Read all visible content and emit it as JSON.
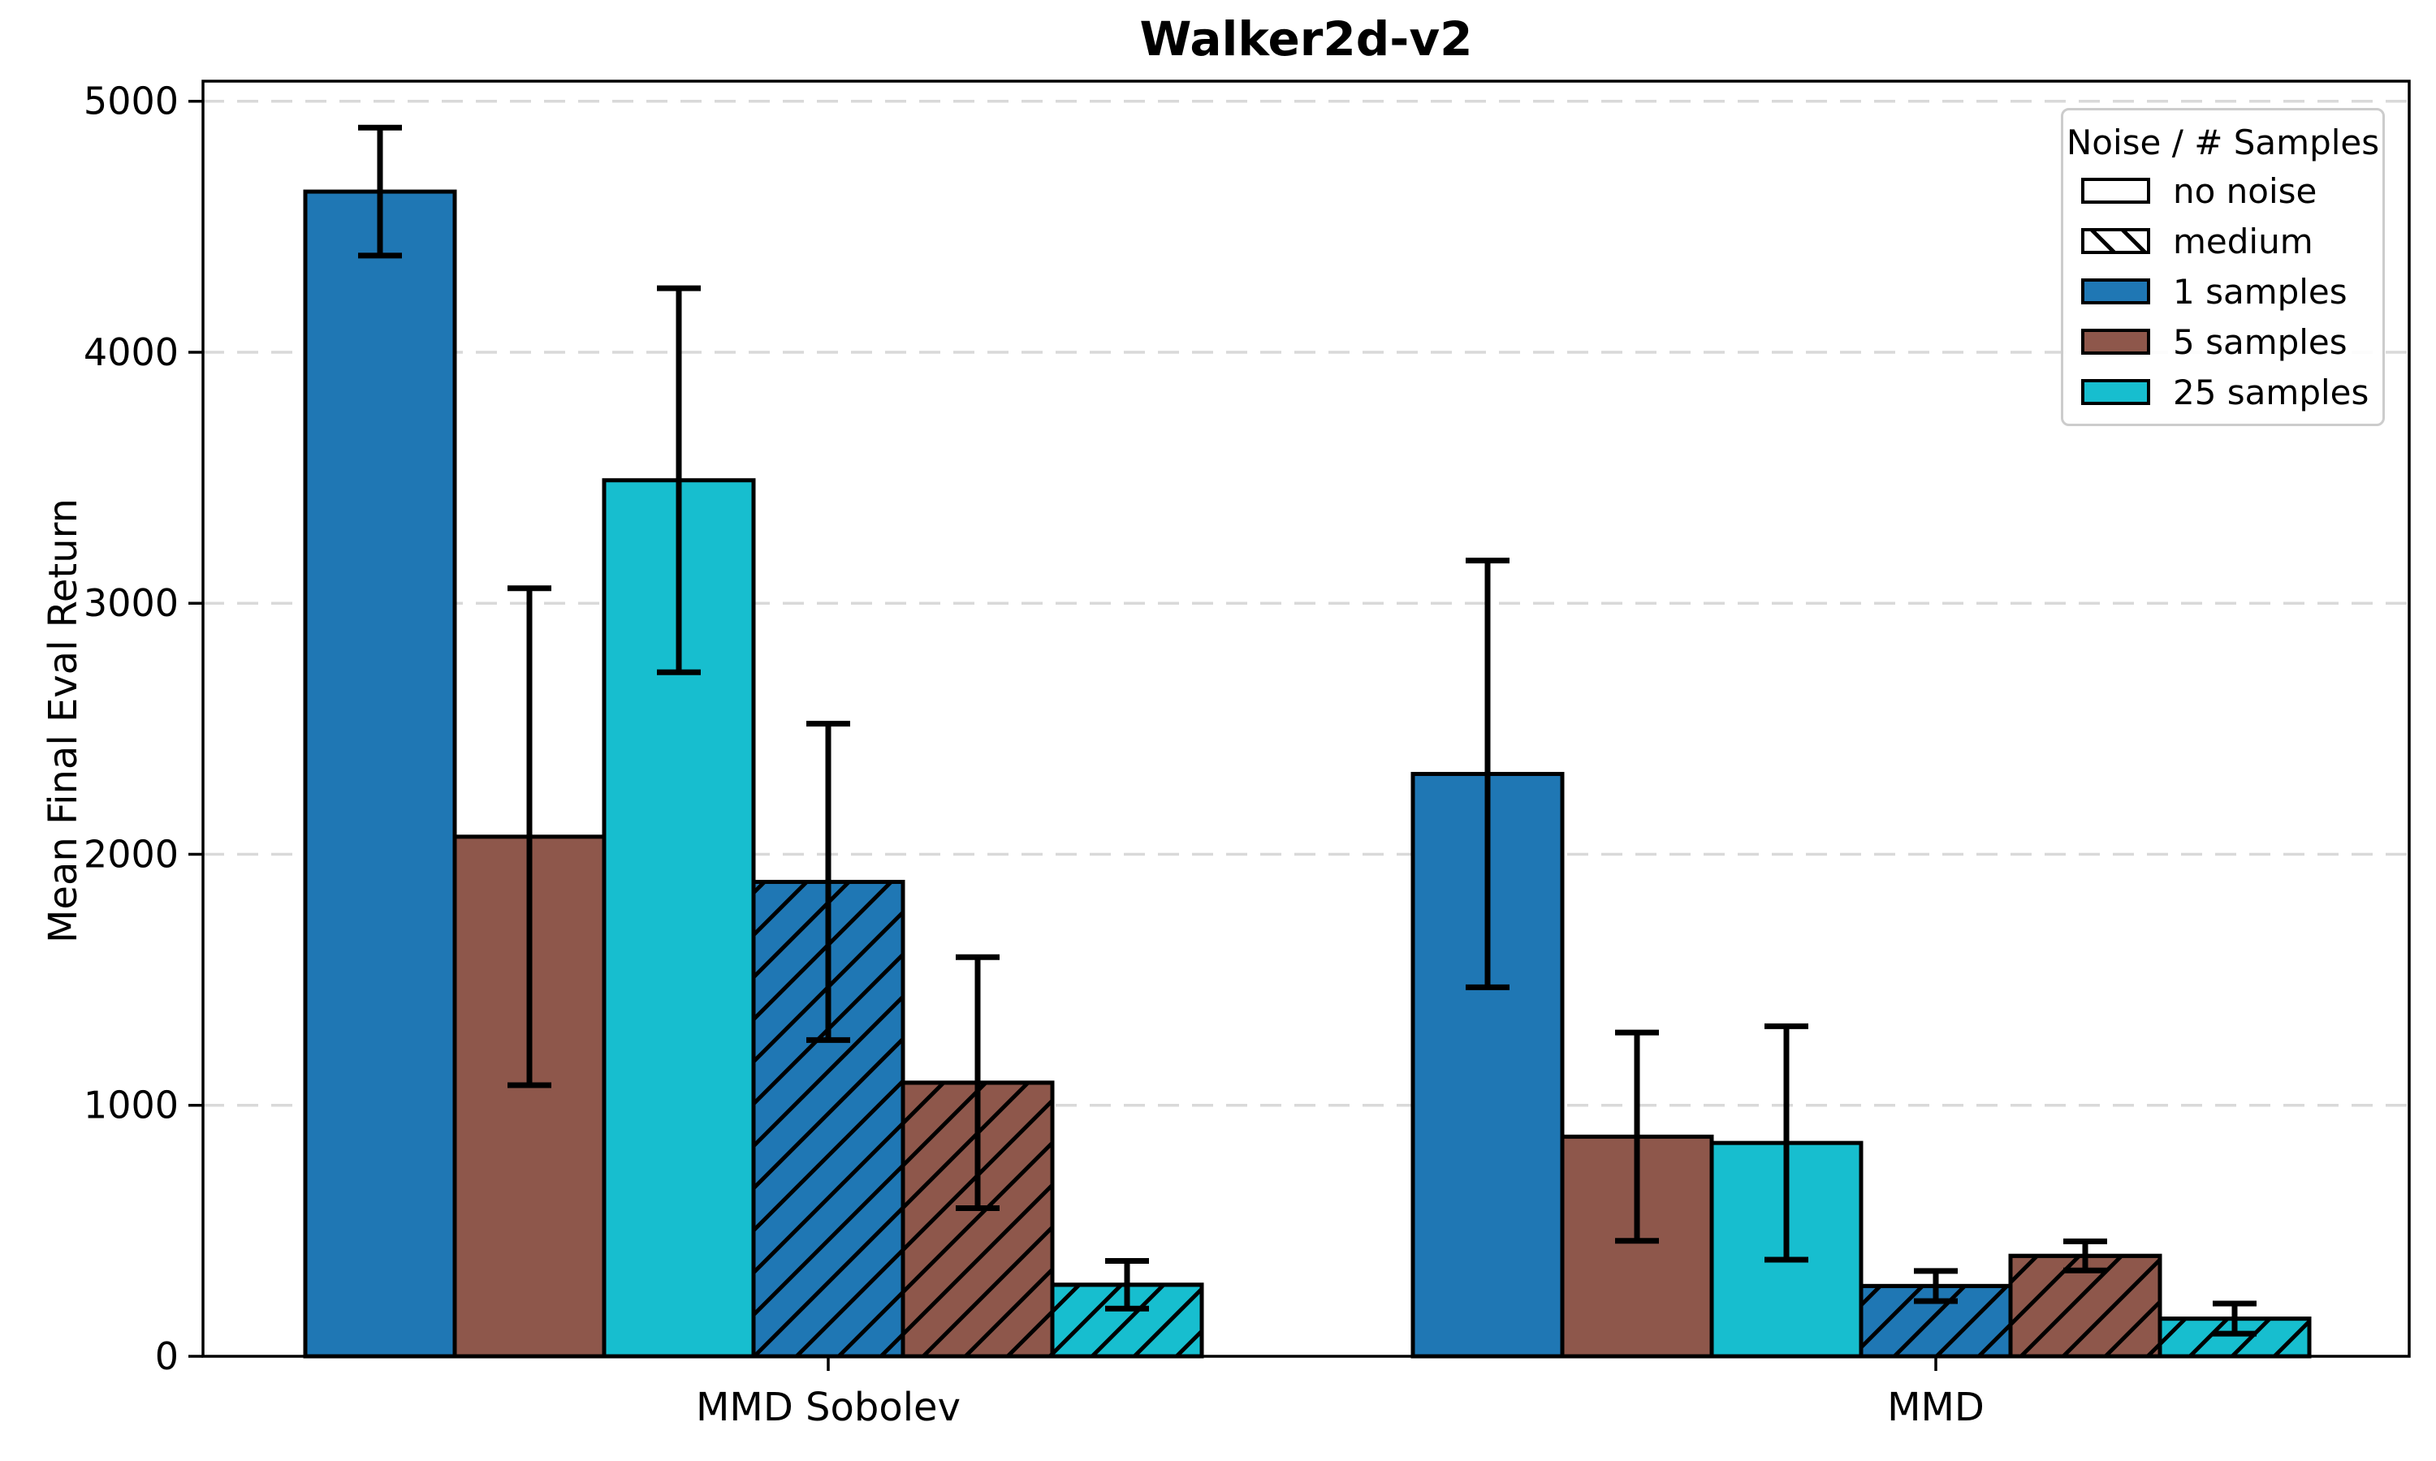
{
  "title": "Walker2d-v2",
  "ylabel": "Mean Final Eval Return",
  "legend": {
    "title": "Noise / # Samples",
    "entries": [
      {
        "label": "no noise",
        "swatch": "plain"
      },
      {
        "label": "medium",
        "swatch": "hatch"
      },
      {
        "label": "1 samples",
        "swatch": "color",
        "color": "#1f77b4"
      },
      {
        "label": "5 samples",
        "swatch": "color",
        "color": "#8e574b"
      },
      {
        "label": "25 samples",
        "swatch": "color",
        "color": "#17becf"
      }
    ]
  },
  "style": {
    "background": "#ffffff",
    "grid_color": "#d9d9d9",
    "edge_color": "#000000",
    "legend_border": "#cccccc"
  },
  "chart_data": {
    "type": "bar",
    "title": "Walker2d-v2",
    "xlabel": "",
    "ylabel": "Mean Final Eval Return",
    "categories": [
      "MMD Sobolev",
      "MMD"
    ],
    "series": [
      {
        "name": "1 samples / no noise",
        "samples": "1 samples",
        "noise": "no noise",
        "color": "#1f77b4",
        "hatch": false,
        "values": [
          4640,
          2320
        ],
        "errors": [
          255,
          850
        ]
      },
      {
        "name": "5 samples / no noise",
        "samples": "5 samples",
        "noise": "no noise",
        "color": "#8e574b",
        "hatch": false,
        "values": [
          2070,
          875
        ],
        "errors": [
          990,
          415
        ]
      },
      {
        "name": "25 samples / no noise",
        "samples": "25 samples",
        "noise": "no noise",
        "color": "#17becf",
        "hatch": false,
        "values": [
          3490,
          850
        ],
        "errors": [
          765,
          465
        ]
      },
      {
        "name": "1 samples / medium",
        "samples": "1 samples",
        "noise": "medium",
        "color": "#1f77b4",
        "hatch": true,
        "values": [
          1890,
          280
        ],
        "errors": [
          630,
          60
        ]
      },
      {
        "name": "5 samples / medium",
        "samples": "5 samples",
        "noise": "medium",
        "color": "#8e574b",
        "hatch": true,
        "values": [
          1090,
          400
        ],
        "errors": [
          500,
          58
        ]
      },
      {
        "name": "25 samples / medium",
        "samples": "25 samples",
        "noise": "medium",
        "color": "#17becf",
        "hatch": true,
        "values": [
          285,
          150
        ],
        "errors": [
          95,
          60
        ]
      }
    ],
    "yticks": [
      0,
      1000,
      2000,
      3000,
      4000,
      5000
    ],
    "ylim": [
      0,
      5080
    ],
    "grid": "y-dashed",
    "error_bars": true,
    "legend_position": "upper right"
  }
}
